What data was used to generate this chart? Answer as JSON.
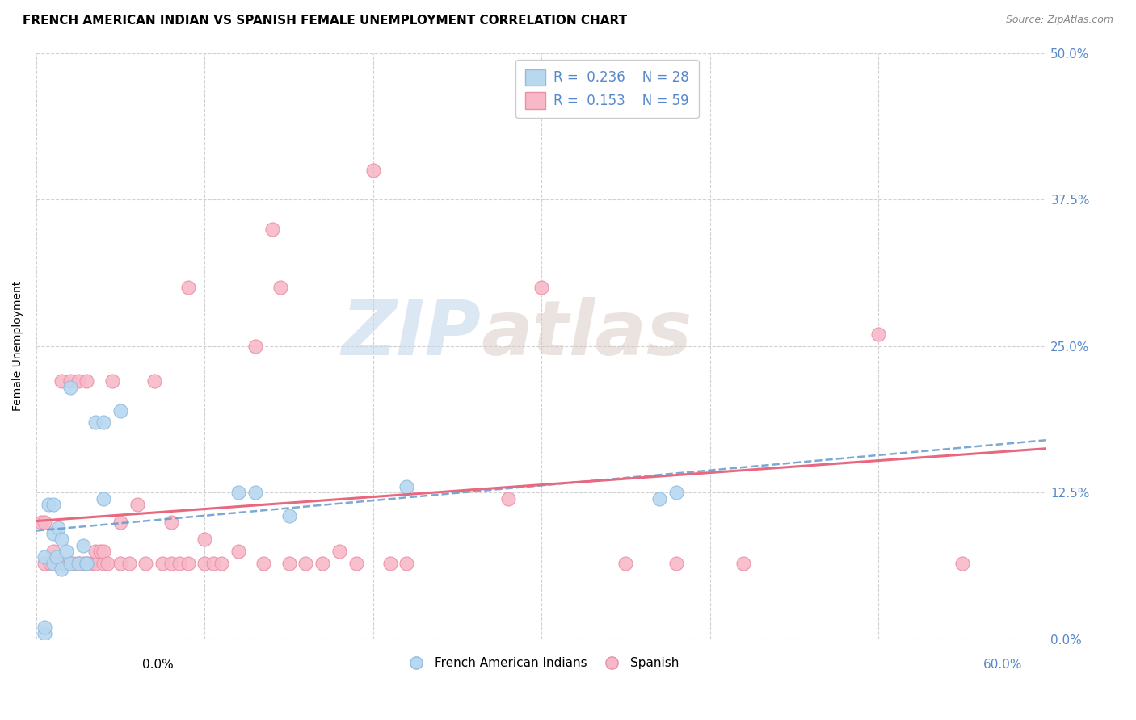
{
  "title": "FRENCH AMERICAN INDIAN VS SPANISH FEMALE UNEMPLOYMENT CORRELATION CHART",
  "source": "Source: ZipAtlas.com",
  "ylabel": "Female Unemployment",
  "xlim": [
    0.0,
    0.6
  ],
  "ylim": [
    0.0,
    0.5
  ],
  "xtick_vals": [
    0.0,
    0.1,
    0.2,
    0.3,
    0.4,
    0.5,
    0.6
  ],
  "ytick_vals": [
    0.0,
    0.125,
    0.25,
    0.375,
    0.5
  ],
  "ytick_labels": [
    "0.0%",
    "12.5%",
    "25.0%",
    "37.5%",
    "50.0%"
  ],
  "watermark_zip": "ZIP",
  "watermark_atlas": "atlas",
  "legend_bottom_labels": [
    "French American Indians",
    "Spanish"
  ],
  "blue_color": "#b8d8f0",
  "blue_edge_color": "#90bce0",
  "pink_color": "#f8b8c8",
  "pink_edge_color": "#e890a8",
  "blue_line_color": "#6699cc",
  "pink_line_color": "#e86880",
  "grid_color": "#cccccc",
  "background_color": "#ffffff",
  "title_fontsize": 11,
  "axis_label_fontsize": 10,
  "tick_label_color": "#5588cc",
  "source_color": "#888888",
  "blue_dot_x": [
    0.005,
    0.005,
    0.007,
    0.01,
    0.01,
    0.01,
    0.012,
    0.013,
    0.015,
    0.015,
    0.018,
    0.02,
    0.02,
    0.025,
    0.028,
    0.03,
    0.03,
    0.035,
    0.04,
    0.04,
    0.05,
    0.12,
    0.13,
    0.15,
    0.22,
    0.37,
    0.38,
    0.005
  ],
  "blue_dot_y": [
    0.005,
    0.07,
    0.115,
    0.115,
    0.09,
    0.065,
    0.07,
    0.095,
    0.085,
    0.06,
    0.075,
    0.215,
    0.065,
    0.065,
    0.08,
    0.065,
    0.065,
    0.185,
    0.185,
    0.12,
    0.195,
    0.125,
    0.125,
    0.105,
    0.13,
    0.12,
    0.125,
    0.01
  ],
  "pink_dot_x": [
    0.003,
    0.005,
    0.005,
    0.008,
    0.01,
    0.01,
    0.013,
    0.015,
    0.015,
    0.018,
    0.02,
    0.02,
    0.022,
    0.025,
    0.025,
    0.025,
    0.028,
    0.03,
    0.03,
    0.032,
    0.035,
    0.035,
    0.038,
    0.04,
    0.04,
    0.042,
    0.045,
    0.05,
    0.05,
    0.055,
    0.06,
    0.065,
    0.07,
    0.075,
    0.08,
    0.08,
    0.085,
    0.09,
    0.09,
    0.1,
    0.1,
    0.105,
    0.11,
    0.12,
    0.13,
    0.135,
    0.14,
    0.145,
    0.15,
    0.16,
    0.17,
    0.18,
    0.19,
    0.2,
    0.21,
    0.22,
    0.28,
    0.3,
    0.35,
    0.38,
    0.42,
    0.5,
    0.55
  ],
  "pink_dot_y": [
    0.1,
    0.065,
    0.1,
    0.065,
    0.075,
    0.065,
    0.065,
    0.065,
    0.22,
    0.065,
    0.065,
    0.22,
    0.065,
    0.065,
    0.065,
    0.22,
    0.065,
    0.065,
    0.22,
    0.065,
    0.065,
    0.075,
    0.075,
    0.065,
    0.075,
    0.065,
    0.22,
    0.065,
    0.1,
    0.065,
    0.115,
    0.065,
    0.22,
    0.065,
    0.065,
    0.1,
    0.065,
    0.3,
    0.065,
    0.065,
    0.085,
    0.065,
    0.065,
    0.075,
    0.25,
    0.065,
    0.35,
    0.3,
    0.065,
    0.065,
    0.065,
    0.075,
    0.065,
    0.4,
    0.065,
    0.065,
    0.12,
    0.3,
    0.065,
    0.065,
    0.065,
    0.26,
    0.065
  ]
}
